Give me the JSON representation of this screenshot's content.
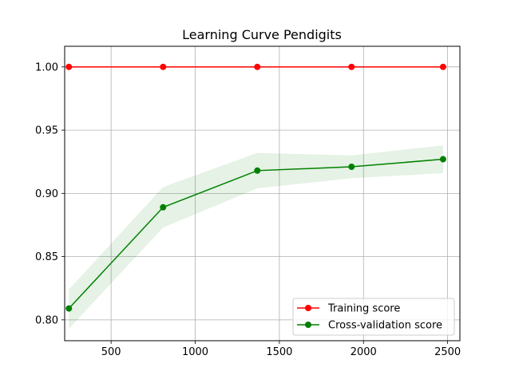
{
  "chart_data": {
    "type": "line",
    "title": "Learning Curve Pendigits",
    "xlabel": "",
    "ylabel": "",
    "xlim": [
      224,
      2573
    ],
    "ylim": [
      0.7835,
      1.0163
    ],
    "xticks": [
      500,
      1000,
      1500,
      2000,
      2500
    ],
    "yticks": [
      0.8,
      0.85,
      0.9,
      0.95,
      1.0
    ],
    "xtick_labels": [
      "500",
      "1000",
      "1500",
      "2000",
      "2500"
    ],
    "ytick_labels": [
      "0.80",
      "0.85",
      "0.90",
      "0.95",
      "1.00"
    ],
    "grid": true,
    "legend_position": "lower-right",
    "x": [
      249,
      809,
      1369,
      1929,
      2473
    ],
    "series": [
      {
        "name": "Training score",
        "color": "#ff0000",
        "values": [
          1.0,
          1.0,
          1.0,
          1.0,
          1.0
        ],
        "band_lower": [
          1.0,
          1.0,
          1.0,
          1.0,
          1.0
        ],
        "band_upper": [
          1.0,
          1.0,
          1.0,
          1.0,
          1.0
        ]
      },
      {
        "name": "Cross-validation score",
        "color": "#008000",
        "values": [
          0.809,
          0.889,
          0.918,
          0.921,
          0.927
        ],
        "band_lower": [
          0.793,
          0.873,
          0.904,
          0.912,
          0.916
        ],
        "band_upper": [
          0.824,
          0.905,
          0.932,
          0.93,
          0.938
        ]
      }
    ]
  }
}
